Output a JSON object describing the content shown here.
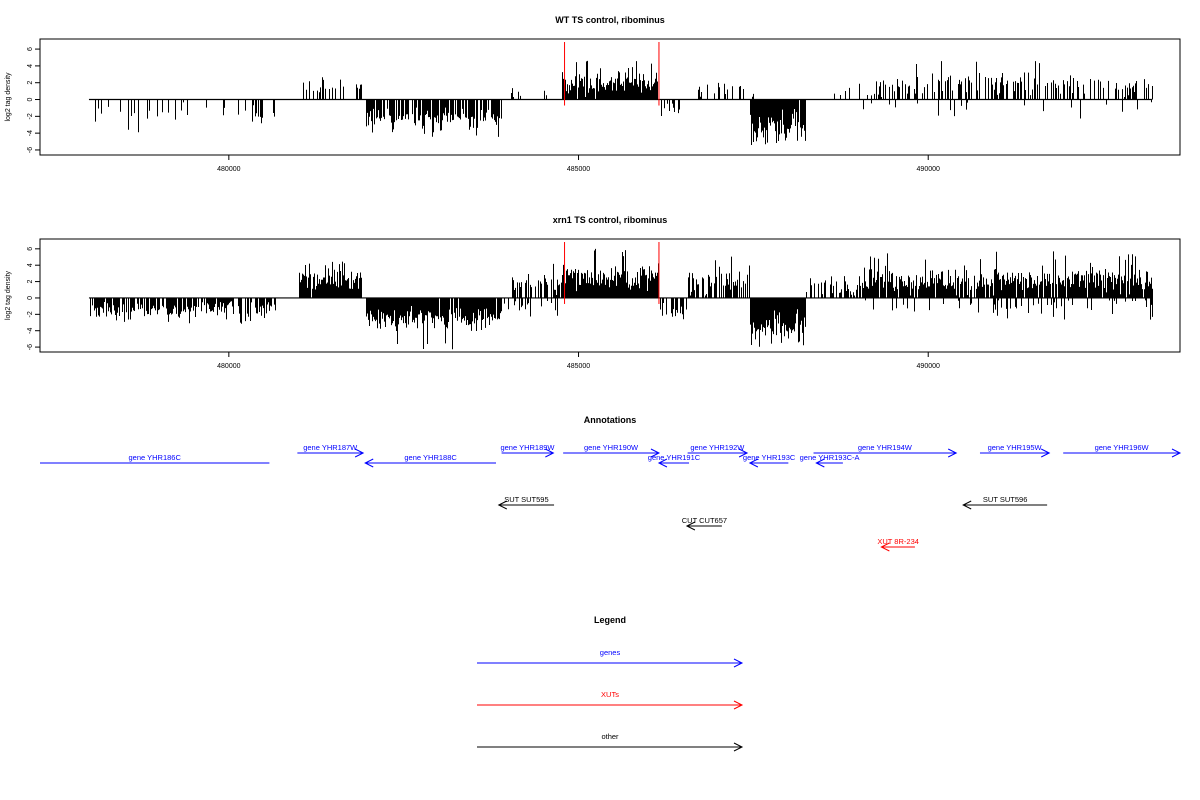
{
  "colors": {
    "genes": "#0000ff",
    "xuts": "#ff0000",
    "other": "#000000",
    "marker": "#ff0000",
    "bars": "#000000"
  },
  "chart_data": [
    {
      "type": "bar",
      "title": "WT TS control, ribominus",
      "ylabel": "log2 tag density",
      "xlim": [
        477300,
        493600
      ],
      "ylim": [
        -6.6,
        7.2
      ],
      "x_ticks": [
        480000,
        485000,
        490000
      ],
      "y_ticks": [
        -6,
        -4,
        -2,
        0,
        2,
        4,
        6
      ],
      "markers_x": [
        484800,
        486150
      ],
      "segments": [
        {
          "from": 478000,
          "to": 480700,
          "strand": "-",
          "density": 0.22,
          "mean": 1.6,
          "spread": 0.7,
          "max": 4.2
        },
        {
          "from": 481000,
          "to": 481900,
          "strand": "+",
          "density": 0.35,
          "mean": 1.7,
          "spread": 0.6,
          "max": 3.2
        },
        {
          "from": 481950,
          "to": 483900,
          "strand": "-",
          "density": 0.75,
          "mean": 2.2,
          "spread": 0.7,
          "max": 4.5
        },
        {
          "from": 483900,
          "to": 484750,
          "strand": "+",
          "density": 0.1,
          "mean": 0.8,
          "spread": 0.4,
          "max": 1.5
        },
        {
          "from": 484750,
          "to": 486150,
          "strand": "+",
          "density": 0.95,
          "mean": 2.0,
          "spread": 0.9,
          "max": 4.8
        },
        {
          "from": 486150,
          "to": 486450,
          "strand": "-",
          "density": 0.4,
          "mean": 1.4,
          "spread": 0.8,
          "max": 3.0
        },
        {
          "from": 486700,
          "to": 487500,
          "strand": "+",
          "density": 0.2,
          "mean": 1.2,
          "spread": 0.8,
          "max": 3.8
        },
        {
          "from": 487450,
          "to": 488250,
          "strand": "-",
          "density": 0.95,
          "mean": 3.2,
          "spread": 1.2,
          "max": 5.9
        },
        {
          "from": 488500,
          "to": 489000,
          "strand": "+",
          "density": 0.1,
          "mean": 1.0,
          "spread": 0.6,
          "max": 2.6
        },
        {
          "from": 489000,
          "to": 493200,
          "strand": "+",
          "density": 0.45,
          "mean": 1.6,
          "spread": 0.9,
          "max": 4.6
        },
        {
          "from": 489000,
          "to": 493200,
          "strand": "-",
          "density": 0.08,
          "mean": 0.9,
          "spread": 0.6,
          "max": 2.4
        }
      ]
    },
    {
      "type": "bar",
      "title": "xrn1 TS control, ribominus",
      "ylabel": "log2 tag density",
      "xlim": [
        477300,
        493600
      ],
      "ylim": [
        -6.6,
        7.2
      ],
      "x_ticks": [
        480000,
        485000,
        490000
      ],
      "y_ticks": [
        -6,
        -4,
        -2,
        0,
        2,
        4,
        6
      ],
      "markers_x": [
        484800,
        486150
      ],
      "segments": [
        {
          "from": 478000,
          "to": 480700,
          "strand": "-",
          "density": 0.8,
          "mean": 1.5,
          "spread": 0.7,
          "max": 3.4
        },
        {
          "from": 481000,
          "to": 481900,
          "strand": "+",
          "density": 0.95,
          "mean": 2.4,
          "spread": 0.8,
          "max": 4.7
        },
        {
          "from": 481950,
          "to": 483900,
          "strand": "-",
          "density": 0.95,
          "mean": 2.5,
          "spread": 0.9,
          "max": 6.3
        },
        {
          "from": 483900,
          "to": 484700,
          "strand": "-",
          "density": 0.3,
          "mean": 1.2,
          "spread": 0.5,
          "max": 2.5
        },
        {
          "from": 484000,
          "to": 484750,
          "strand": "+",
          "density": 0.6,
          "mean": 1.8,
          "spread": 0.8,
          "max": 4.4
        },
        {
          "from": 484750,
          "to": 486150,
          "strand": "+",
          "density": 1.0,
          "mean": 2.6,
          "spread": 1.0,
          "max": 6.0
        },
        {
          "from": 486150,
          "to": 486550,
          "strand": "-",
          "density": 0.6,
          "mean": 1.6,
          "spread": 0.8,
          "max": 4.6
        },
        {
          "from": 486550,
          "to": 487450,
          "strand": "+",
          "density": 0.6,
          "mean": 2.0,
          "spread": 1.0,
          "max": 5.3
        },
        {
          "from": 487450,
          "to": 488250,
          "strand": "-",
          "density": 1.0,
          "mean": 3.6,
          "spread": 1.2,
          "max": 6.0
        },
        {
          "from": 488250,
          "to": 489000,
          "strand": "+",
          "density": 0.5,
          "mean": 1.6,
          "spread": 0.8,
          "max": 3.6
        },
        {
          "from": 489000,
          "to": 493200,
          "strand": "+",
          "density": 0.9,
          "mean": 2.2,
          "spread": 1.0,
          "max": 5.8
        },
        {
          "from": 489000,
          "to": 493200,
          "strand": "-",
          "density": 0.18,
          "mean": 1.0,
          "spread": 0.6,
          "max": 2.8
        }
      ]
    }
  ],
  "annotations": {
    "title": "Annotations",
    "features": [
      {
        "label": "gene YHR186C",
        "type": "genes",
        "strand": "-",
        "start": 477300,
        "end": 480580,
        "row": 1
      },
      {
        "label": "gene YHR187W",
        "type": "genes",
        "strand": "+",
        "start": 480980,
        "end": 481920,
        "row": 0
      },
      {
        "label": "gene YHR188C",
        "type": "genes",
        "strand": "-",
        "start": 481950,
        "end": 483820,
        "row": 1
      },
      {
        "label": "gene YHR189W",
        "type": "genes",
        "strand": "+",
        "start": 483900,
        "end": 484640,
        "row": 0
      },
      {
        "label": "gene YHR190W",
        "type": "genes",
        "strand": "+",
        "start": 484780,
        "end": 486150,
        "row": 0
      },
      {
        "label": "gene YHR191C",
        "type": "genes",
        "strand": "-",
        "start": 486150,
        "end": 486580,
        "row": 1
      },
      {
        "label": "gene YHR192W",
        "type": "genes",
        "strand": "+",
        "start": 486560,
        "end": 487410,
        "row": 0
      },
      {
        "label": "gene YHR193C",
        "type": "genes",
        "strand": "-",
        "start": 487450,
        "end": 488000,
        "row": 1
      },
      {
        "label": "gene YHR193C-A",
        "type": "genes",
        "strand": "-",
        "start": 488400,
        "end": 488780,
        "row": 1
      },
      {
        "label": "gene YHR194W",
        "type": "genes",
        "strand": "+",
        "start": 488360,
        "end": 490400,
        "row": 0
      },
      {
        "label": "gene YHR195W",
        "type": "genes",
        "strand": "+",
        "start": 490740,
        "end": 491730,
        "row": 0
      },
      {
        "label": "gene YHR196W",
        "type": "genes",
        "strand": "+",
        "start": 491930,
        "end": 493600,
        "row": 0
      },
      {
        "label": "SUT SUT595",
        "type": "other",
        "strand": "-",
        "start": 483860,
        "end": 484650,
        "row": 3
      },
      {
        "label": "SUT SUT596",
        "type": "other",
        "strand": "-",
        "start": 490500,
        "end": 491700,
        "row": 3
      },
      {
        "label": "CUT CUT657",
        "type": "other",
        "strand": "-",
        "start": 486550,
        "end": 487050,
        "row": 4
      },
      {
        "label": "XUT 8R-234",
        "type": "xuts",
        "strand": "-",
        "start": 489330,
        "end": 489810,
        "row": 5
      }
    ]
  },
  "legend": {
    "title": "Legend",
    "items": [
      {
        "label": "genes",
        "type": "genes"
      },
      {
        "label": "XUTs",
        "type": "xuts"
      },
      {
        "label": "other",
        "type": "other"
      }
    ]
  }
}
